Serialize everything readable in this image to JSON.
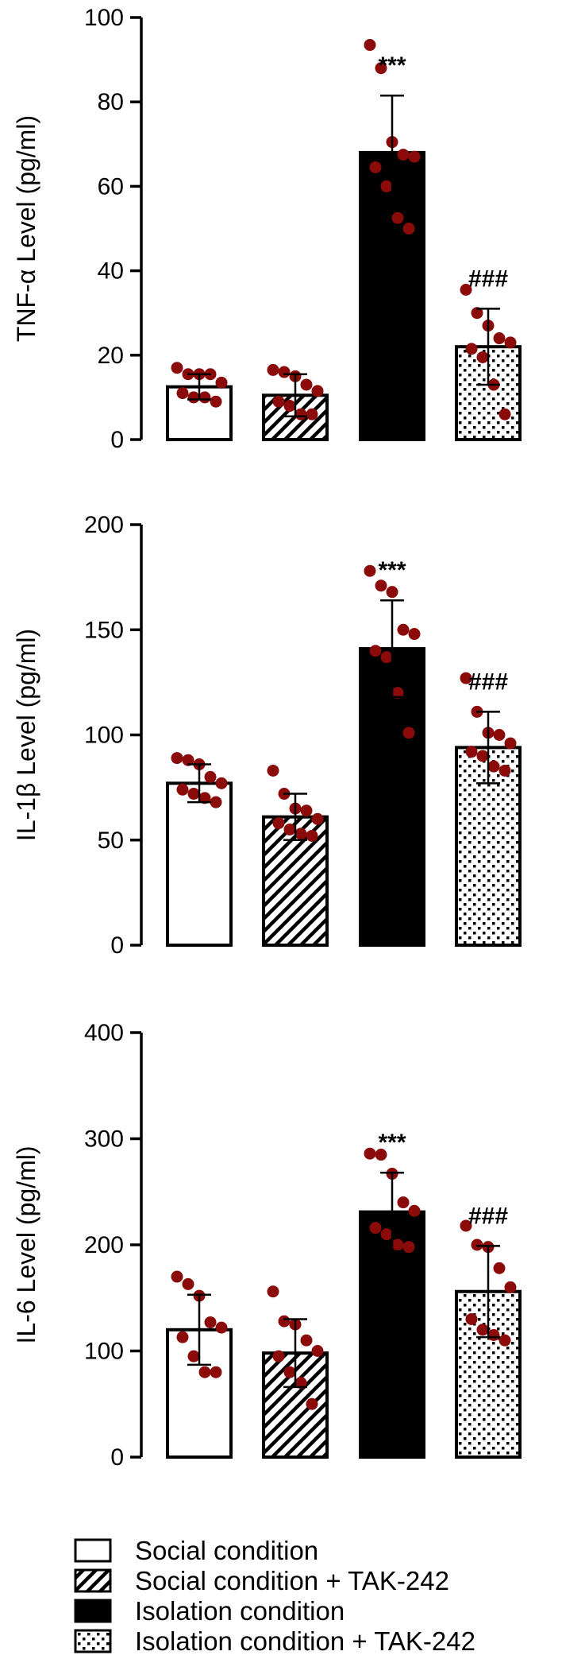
{
  "colors": {
    "dot": "#8b0a0a",
    "bar_stroke": "#000000",
    "solid_fill": "#000000",
    "open_fill": "#ffffff"
  },
  "groups": [
    {
      "key": "social",
      "pattern": "open",
      "legend_label": "Social condition"
    },
    {
      "key": "social_tak",
      "pattern": "hatch",
      "legend_label": "Social condition + TAK-242"
    },
    {
      "key": "isolation",
      "pattern": "solid",
      "legend_label": "Isolation condition"
    },
    {
      "key": "isolation_tak",
      "pattern": "dots",
      "legend_label": "Isolation condition + TAK-242"
    }
  ],
  "chart_data": [
    {
      "type": "bar",
      "ylabel": "TNF-α Level (pg/ml)",
      "ylim": [
        0,
        100
      ],
      "yticks": [
        0,
        20,
        40,
        60,
        80,
        100
      ],
      "categories": [
        "Social condition",
        "Social condition + TAK-242",
        "Isolation condition",
        "Isolation condition + TAK-242"
      ],
      "values": [
        12.5,
        10.5,
        68,
        22
      ],
      "errors": [
        3,
        5,
        13.5,
        9
      ],
      "annotations": [
        "",
        "",
        "***",
        "###"
      ],
      "points": [
        [
          17,
          15.5,
          15.5,
          15.5,
          13.5,
          11,
          10,
          10,
          9
        ],
        [
          16.5,
          16,
          15,
          13,
          11.5,
          9,
          8,
          6,
          6
        ],
        [
          93.5,
          88,
          70.5,
          67.5,
          67,
          64.5,
          60,
          52.5,
          50
        ],
        [
          35.5,
          30,
          27,
          24,
          23,
          21.5,
          19.5,
          13,
          6
        ]
      ]
    },
    {
      "type": "bar",
      "ylabel": "IL-1β Level (pg/ml)",
      "ylim": [
        0,
        200
      ],
      "yticks": [
        0,
        50,
        100,
        150,
        200
      ],
      "categories": [
        "Social condition",
        "Social condition + TAK-242",
        "Isolation condition",
        "Isolation condition + TAK-242"
      ],
      "values": [
        77,
        61,
        141,
        94
      ],
      "errors": [
        9,
        11,
        23,
        17
      ],
      "annotations": [
        "",
        "",
        "***",
        "###"
      ],
      "points": [
        [
          89,
          88,
          86,
          80,
          77,
          74,
          72,
          70,
          68
        ],
        [
          83,
          72,
          65,
          64,
          60,
          58,
          55,
          53,
          52
        ],
        [
          178,
          171,
          168,
          150,
          148,
          140,
          137,
          120,
          101
        ],
        [
          127,
          111,
          101,
          100,
          96,
          92,
          90,
          85,
          83
        ]
      ]
    },
    {
      "type": "bar",
      "ylabel": "IL-6 Level (pg/ml)",
      "ylim": [
        0,
        400
      ],
      "yticks": [
        0,
        100,
        200,
        300,
        400
      ],
      "categories": [
        "Social condition",
        "Social condition + TAK-242",
        "Isolation condition",
        "Isolation condition + TAK-242"
      ],
      "values": [
        120,
        98,
        231,
        156
      ],
      "errors": [
        33,
        32,
        37,
        43
      ],
      "annotations": [
        "",
        "",
        "***",
        "###"
      ],
      "points": [
        [
          170,
          163,
          152,
          127,
          122,
          113,
          95,
          80,
          80
        ],
        [
          156,
          128,
          125,
          110,
          100,
          95,
          80,
          70,
          50
        ],
        [
          286,
          285,
          267,
          240,
          232,
          216,
          210,
          200,
          198
        ],
        [
          218,
          200,
          198,
          178,
          160,
          130,
          120,
          115,
          110
        ]
      ]
    }
  ]
}
